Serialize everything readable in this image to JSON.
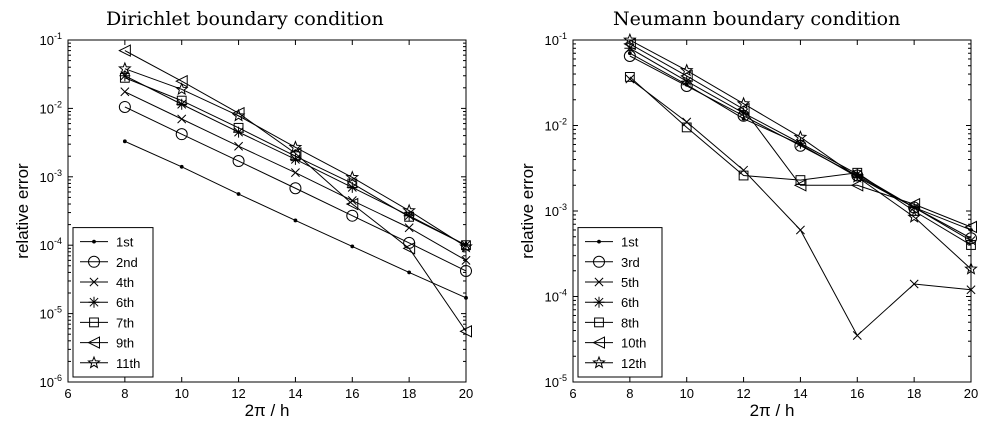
{
  "chart_data": [
    {
      "type": "line",
      "title": "Dirichlet boundary condition",
      "xlabel": "2π / h",
      "ylabel": "relative error",
      "xlim": [
        6,
        20
      ],
      "ylim": [
        1e-06,
        0.1
      ],
      "yscale": "log",
      "xticks": [
        "6",
        "8",
        "10",
        "12",
        "14",
        "16",
        "18",
        "20"
      ],
      "grid": false,
      "legend_position": "bottom-left",
      "x": [
        8,
        10,
        12,
        14,
        16,
        18,
        20
      ],
      "series": [
        {
          "name": "1st",
          "marker": "dot",
          "values": [
            0.0033,
            0.0014,
            0.00056,
            0.00023,
            9.6e-05,
            4e-05,
            1.7e-05
          ]
        },
        {
          "name": "2nd",
          "marker": "circle",
          "values": [
            0.0105,
            0.0042,
            0.0017,
            0.00068,
            0.00027,
            0.000108,
            4.2e-05
          ]
        },
        {
          "name": "4th",
          "marker": "x",
          "values": [
            0.0175,
            0.007,
            0.0028,
            0.00115,
            0.00045,
            0.00018,
            6e-05
          ]
        },
        {
          "name": "6th",
          "marker": "asterisk",
          "values": [
            0.03,
            0.0115,
            0.0045,
            0.0018,
            0.0007,
            0.00027,
            0.0001
          ]
        },
        {
          "name": "7th",
          "marker": "square",
          "values": [
            0.028,
            0.013,
            0.0052,
            0.002,
            0.0008,
            0.00026,
            0.0001
          ]
        },
        {
          "name": "9th",
          "marker": "triangle-left",
          "values": [
            0.07,
            0.025,
            0.0085,
            0.0022,
            0.0004,
            9e-05,
            5.5e-06
          ]
        },
        {
          "name": "11th",
          "marker": "star",
          "values": [
            0.038,
            0.019,
            0.0078,
            0.0027,
            0.00098,
            0.00032,
            9.5e-05
          ]
        }
      ]
    },
    {
      "type": "line",
      "title": "Neumann boundary condition",
      "xlabel": "2π / h",
      "ylabel": "relative error",
      "xlim": [
        6,
        20
      ],
      "ylim": [
        1e-05,
        0.1
      ],
      "yscale": "log",
      "xticks": [
        "6",
        "8",
        "10",
        "12",
        "14",
        "16",
        "18",
        "20"
      ],
      "grid": false,
      "legend_position": "bottom-left",
      "x": [
        8,
        10,
        12,
        14,
        16,
        18,
        20
      ],
      "series": [
        {
          "name": "1st",
          "marker": "dot",
          "values": [
            0.07,
            0.03,
            0.012,
            0.006,
            0.0025,
            0.0011,
            0.0006
          ]
        },
        {
          "name": "3rd",
          "marker": "circle",
          "values": [
            0.065,
            0.029,
            0.013,
            0.0058,
            0.0026,
            0.0011,
            0.00048
          ]
        },
        {
          "name": "5th",
          "marker": "x",
          "values": [
            0.035,
            0.011,
            0.003,
            0.0006,
            3.5e-05,
            0.00014,
            0.00012
          ]
        },
        {
          "name": "6th",
          "marker": "asterisk",
          "values": [
            0.08,
            0.033,
            0.014,
            0.0062,
            0.0027,
            0.0011,
            0.00045
          ]
        },
        {
          "name": "8th",
          "marker": "square",
          "values": [
            0.037,
            0.0095,
            0.0026,
            0.0023,
            0.0028,
            0.001,
            0.0004
          ]
        },
        {
          "name": "10th",
          "marker": "triangle-left",
          "values": [
            0.09,
            0.038,
            0.0155,
            0.002,
            0.002,
            0.0012,
            0.00065
          ]
        },
        {
          "name": "12th",
          "marker": "star",
          "values": [
            0.1,
            0.044,
            0.018,
            0.0073,
            0.0025,
            0.00085,
            0.00021
          ]
        }
      ]
    }
  ]
}
